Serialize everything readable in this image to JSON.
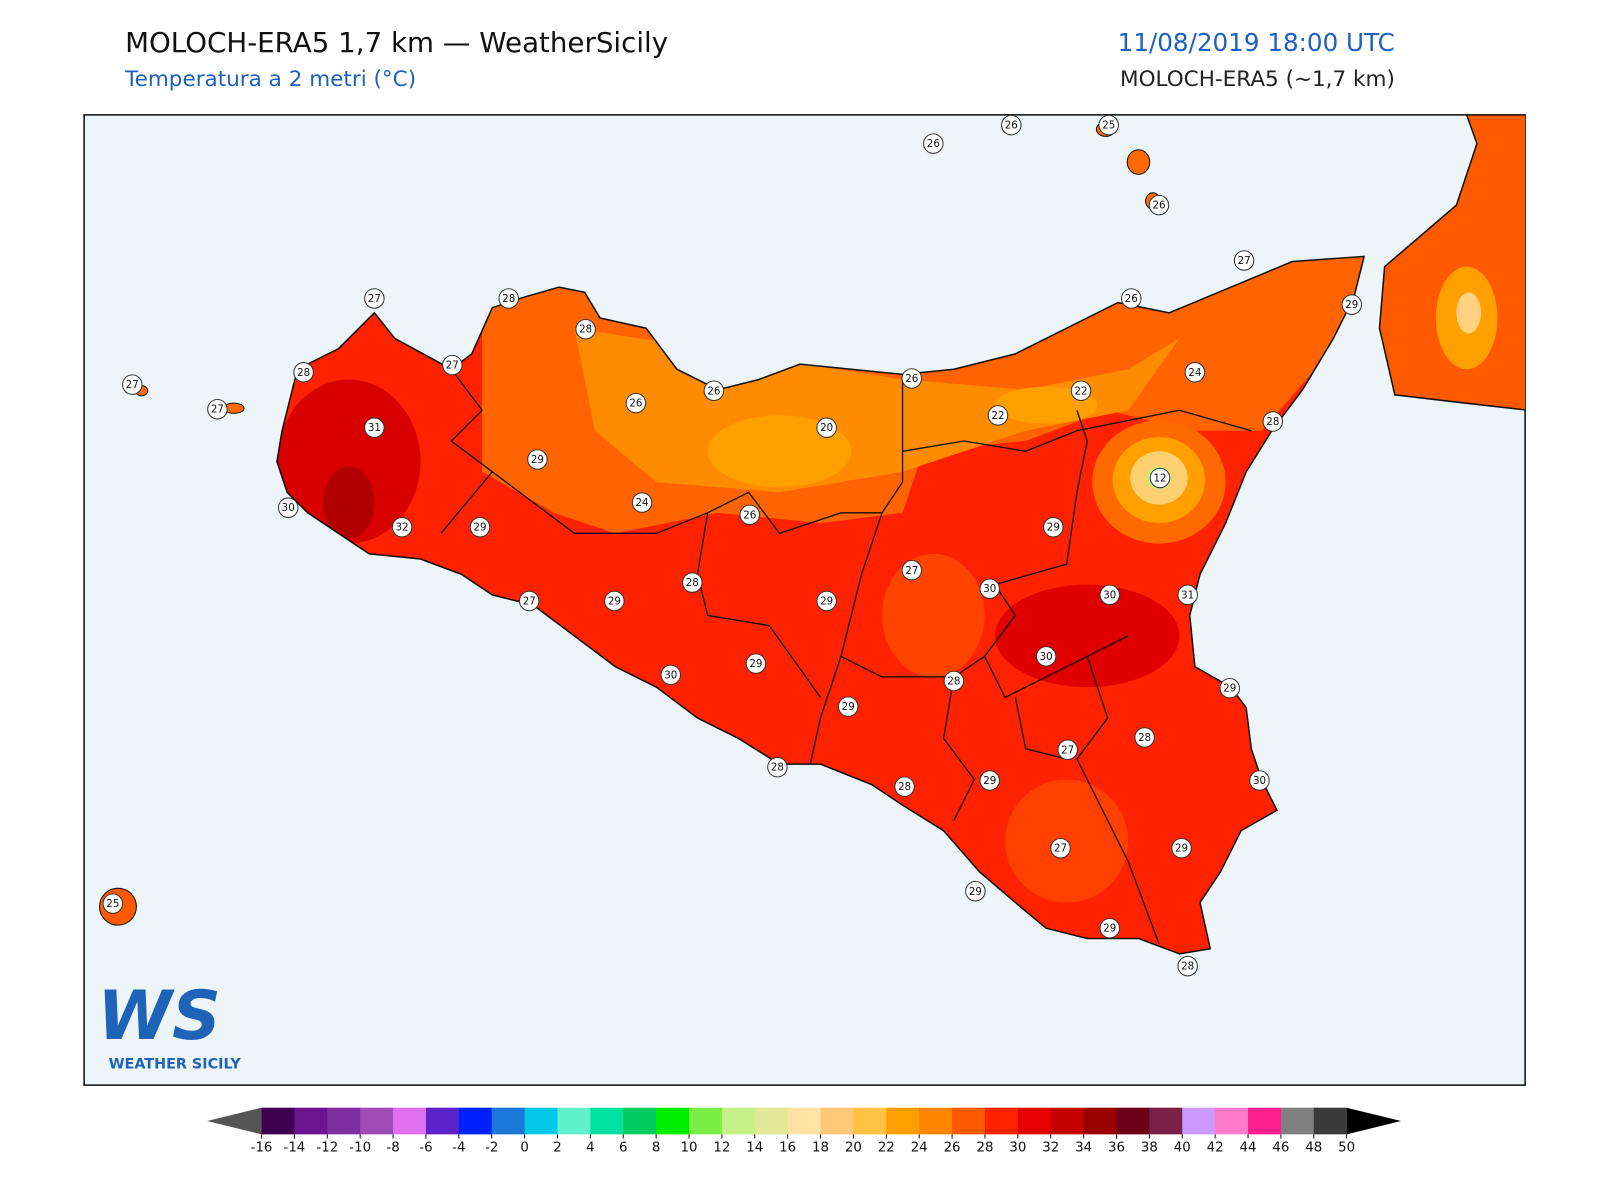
{
  "header": {
    "title": "MOLOCH-ERA5 1,7 km — WeatherSicily",
    "subtitle": "Temperatura a 2 metri (°C)",
    "datetime": "11/08/2019 18:00 UTC",
    "model": "MOLOCH-ERA5 (~1,7 km)"
  },
  "stations": [
    26,
    26,
    25,
    26,
    27,
    26,
    29,
    27,
    28,
    28,
    27,
    28,
    27,
    27,
    31,
    26,
    26,
    26,
    24,
    22,
    22,
    20,
    28,
    29,
    12,
    24,
    30,
    32,
    29,
    26,
    29,
    27,
    28,
    30,
    30,
    31,
    27,
    29,
    29,
    30,
    29,
    30,
    29,
    28,
    29,
    28,
    27,
    28,
    30,
    28,
    29,
    27,
    29,
    29,
    29,
    28,
    25
  ],
  "colorbar": {
    "ticks": [
      -16,
      -14,
      -12,
      -10,
      -8,
      -6,
      -4,
      -2,
      0,
      2,
      4,
      6,
      8,
      10,
      12,
      14,
      16,
      18,
      20,
      22,
      24,
      26,
      28,
      30,
      32,
      34,
      36,
      38,
      40,
      42,
      44,
      46,
      48,
      50
    ],
    "colors": [
      "#3f0052",
      "#6a1490",
      "#7f2f9f",
      "#a04cb8",
      "#e070ee",
      "#5b22c8",
      "#0022ff",
      "#1b78d8",
      "#00c8e6",
      "#60f0cc",
      "#00e0a0",
      "#00cc60",
      "#00ee00",
      "#7aee44",
      "#c4f088",
      "#e2e896",
      "#ffe2a4",
      "#ffc878",
      "#ffc242",
      "#ffa000",
      "#ff8500",
      "#ff5a00",
      "#ff2200",
      "#e60000",
      "#c40000",
      "#9a0000",
      "#6e001a",
      "#7a2048",
      "#cc99ff",
      "#ff7ac8",
      "#ff1f8f",
      "#808080",
      "#3a3a3a"
    ],
    "under_color": "#555555",
    "over_color": "#000000"
  },
  "logo": {
    "letters": "WS",
    "name": "WEATHER SICILY"
  }
}
